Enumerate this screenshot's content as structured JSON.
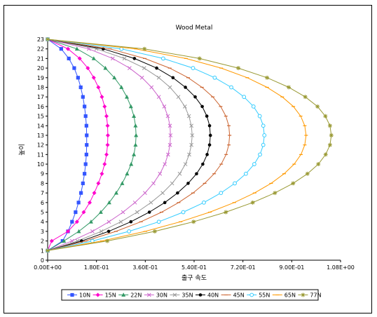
{
  "chart_data": {
    "type": "line",
    "title": "Wood Metal",
    "xlabel": "출구 속도",
    "ylabel": "높이",
    "xlim": [
      0,
      1.08
    ],
    "ylim": [
      0,
      23
    ],
    "x_tick_labels": [
      "0.00E+00",
      "1.80E-01",
      "3.60E-01",
      "5.40E-01",
      "7.20E-01",
      "9.00E-01",
      "1.08E+00"
    ],
    "x_tick_values": [
      0,
      0.18,
      0.36,
      0.54,
      0.72,
      0.9,
      1.08
    ],
    "y_tick_values": [
      0,
      1,
      2,
      3,
      4,
      5,
      6,
      7,
      8,
      9,
      10,
      11,
      12,
      13,
      14,
      15,
      16,
      17,
      18,
      19,
      20,
      21,
      22,
      23
    ],
    "grid": false,
    "legend_position": "bottom",
    "y": [
      1,
      2,
      3,
      4,
      5,
      6,
      7,
      8,
      9,
      10,
      11,
      12,
      13,
      14,
      15,
      16,
      17,
      18,
      19,
      20,
      21,
      22,
      23
    ],
    "series": [
      {
        "name": "10N",
        "color": "#3355ff",
        "marker": "square",
        "values": [
          0.0,
          0.055,
          0.075,
          0.09,
          0.103,
          0.114,
          0.123,
          0.13,
          0.136,
          0.14,
          0.143,
          0.144,
          0.144,
          0.143,
          0.14,
          0.136,
          0.13,
          0.122,
          0.112,
          0.098,
          0.078,
          0.05,
          0.0
        ]
      },
      {
        "name": "15N",
        "color": "#ff00cc",
        "marker": "diamond",
        "values": [
          0.0,
          0.015,
          0.075,
          0.108,
          0.133,
          0.155,
          0.172,
          0.187,
          0.2,
          0.21,
          0.217,
          0.221,
          0.222,
          0.221,
          0.217,
          0.21,
          0.2,
          0.187,
          0.17,
          0.148,
          0.118,
          0.075,
          0.0
        ]
      },
      {
        "name": "22N",
        "color": "#339966",
        "marker": "triangle",
        "values": [
          0.0,
          0.06,
          0.115,
          0.16,
          0.196,
          0.227,
          0.253,
          0.275,
          0.293,
          0.308,
          0.318,
          0.324,
          0.326,
          0.324,
          0.318,
          0.307,
          0.292,
          0.272,
          0.246,
          0.213,
          0.17,
          0.108,
          0.0
        ]
      },
      {
        "name": "30N",
        "color": "#cc66cc",
        "marker": "x",
        "values": [
          0.0,
          0.09,
          0.165,
          0.226,
          0.278,
          0.322,
          0.359,
          0.39,
          0.414,
          0.432,
          0.444,
          0.451,
          0.453,
          0.451,
          0.443,
          0.43,
          0.41,
          0.383,
          0.348,
          0.302,
          0.24,
          0.152,
          0.0
        ]
      },
      {
        "name": "35N",
        "color": "#999999",
        "marker": "x",
        "values": [
          0.0,
          0.11,
          0.198,
          0.27,
          0.33,
          0.381,
          0.424,
          0.459,
          0.487,
          0.508,
          0.522,
          0.53,
          0.533,
          0.53,
          0.521,
          0.506,
          0.482,
          0.451,
          0.41,
          0.356,
          0.283,
          0.18,
          0.0
        ]
      },
      {
        "name": "40N",
        "color": "#000000",
        "marker": "dot",
        "values": [
          0.0,
          0.125,
          0.225,
          0.307,
          0.375,
          0.432,
          0.479,
          0.518,
          0.549,
          0.572,
          0.588,
          0.597,
          0.6,
          0.597,
          0.587,
          0.57,
          0.544,
          0.508,
          0.462,
          0.402,
          0.32,
          0.205,
          0.0
        ]
      },
      {
        "name": "45N",
        "color": "#cc6633",
        "marker": "bar",
        "values": [
          0.0,
          0.14,
          0.252,
          0.344,
          0.42,
          0.483,
          0.536,
          0.579,
          0.614,
          0.64,
          0.658,
          0.668,
          0.671,
          0.668,
          0.657,
          0.638,
          0.609,
          0.569,
          0.518,
          0.45,
          0.358,
          0.23,
          0.0
        ]
      },
      {
        "name": "55N",
        "color": "#33ccff",
        "marker": "circle",
        "values": [
          0.0,
          0.165,
          0.3,
          0.41,
          0.5,
          0.576,
          0.639,
          0.69,
          0.731,
          0.762,
          0.783,
          0.795,
          0.799,
          0.795,
          0.782,
          0.759,
          0.724,
          0.677,
          0.616,
          0.536,
          0.426,
          0.272,
          0.0
        ]
      },
      {
        "name": "65N",
        "color": "#ff9900",
        "marker": "bar",
        "values": [
          0.0,
          0.2,
          0.36,
          0.49,
          0.598,
          0.688,
          0.763,
          0.824,
          0.872,
          0.909,
          0.934,
          0.948,
          0.953,
          0.948,
          0.933,
          0.906,
          0.865,
          0.809,
          0.736,
          0.64,
          0.51,
          0.325,
          0.0
        ]
      },
      {
        "name": "77N",
        "color": "#999933",
        "marker": "asterisk",
        "values": [
          0.0,
          0.22,
          0.395,
          0.538,
          0.657,
          0.756,
          0.838,
          0.905,
          0.958,
          0.998,
          1.025,
          1.041,
          1.046,
          1.041,
          1.024,
          0.995,
          0.95,
          0.889,
          0.809,
          0.703,
          0.56,
          0.357,
          0.0
        ]
      }
    ]
  }
}
